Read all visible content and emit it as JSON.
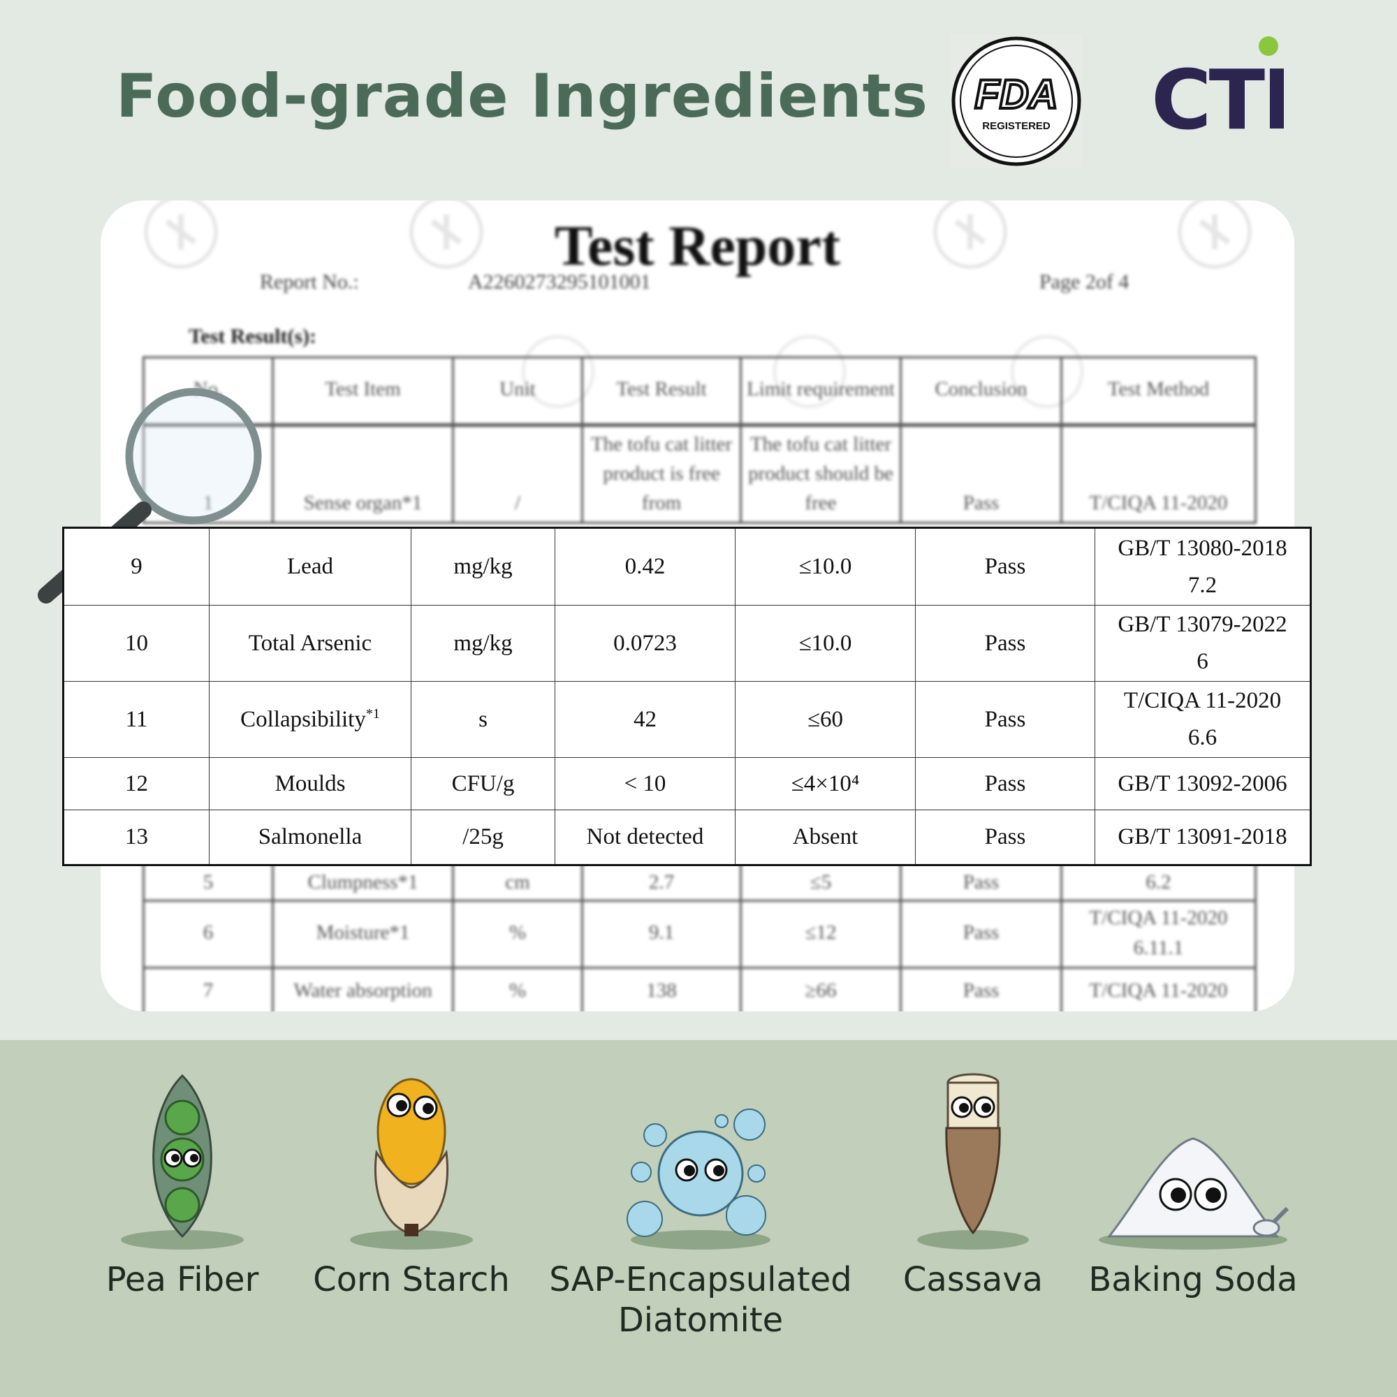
{
  "header": {
    "title": "Food-grade Ingredients",
    "fda_logo": {
      "text": "FDA",
      "subtext": "REGISTERED"
    },
    "cti_logo": {
      "text": "CTI",
      "dot_color": "#8cc63f",
      "color": "#2b2550"
    }
  },
  "document": {
    "title": "Test Report",
    "report_no_label": "Report No.:",
    "report_no": "A2260273295101001",
    "page": "Page 2of 4",
    "section": "Test Result(s):",
    "watermark": "CTI",
    "columns": [
      "No.",
      "Test Item",
      "Unit",
      "Test Result",
      "Limit requirement",
      "Conclusion",
      "Test Method"
    ],
    "rows_top": [
      [
        "1",
        "Sense organ*1",
        "/",
        "The tofu cat litter product is free from",
        "The tofu cat litter product should be free",
        "Pass",
        "T/CIQA 11-2020"
      ]
    ],
    "rows_bottom": [
      [
        "5",
        "Clumpness*1",
        "cm",
        "2.7",
        "≤5",
        "Pass",
        "6.2"
      ],
      [
        "6",
        "Moisture*1",
        "%",
        "9.1",
        "≤12",
        "Pass",
        "T/CIQA 11-2020 6.11.1"
      ],
      [
        "7",
        "Water absorption",
        "%",
        "138",
        "≥66",
        "Pass",
        "T/CIQA 11-2020"
      ]
    ]
  },
  "results": [
    {
      "no": "9",
      "item": "Lead",
      "sup": "",
      "unit": "mg/kg",
      "result": "0.42",
      "limit": "≤10.0",
      "conclusion": "Pass",
      "method": "GB/T 13080-2018",
      "method2": "7.2"
    },
    {
      "no": "10",
      "item": "Total Arsenic",
      "sup": "",
      "unit": "mg/kg",
      "result": "0.0723",
      "limit": "≤10.0",
      "conclusion": "Pass",
      "method": "GB/T 13079-2022",
      "method2": "6"
    },
    {
      "no": "11",
      "item": "Collapsibility",
      "sup": "*1",
      "unit": "s",
      "result": "42",
      "limit": "≤60",
      "conclusion": "Pass",
      "method": "T/CIQA 11-2020",
      "method2": "6.6"
    },
    {
      "no": "12",
      "item": "Moulds",
      "sup": "",
      "unit": "CFU/g",
      "result": "< 10",
      "limit": "≤4×10⁴",
      "conclusion": "Pass",
      "method": "GB/T 13092-2006",
      "method2": ""
    },
    {
      "no": "13",
      "item": "Salmonella",
      "sup": "",
      "unit": "/25g",
      "result": "Not detected",
      "limit": "Absent",
      "conclusion": "Pass",
      "method": "GB/T 13091-2018",
      "method2": ""
    }
  ],
  "ingredients": [
    {
      "label": "Pea Fiber",
      "icon": "pea-pod-icon"
    },
    {
      "label": "Corn Starch",
      "icon": "corn-icon"
    },
    {
      "label": "SAP-Encapsulated",
      "label2": "Diatomite",
      "icon": "bubble-icon"
    },
    {
      "label": "Cassava",
      "icon": "cassava-icon"
    },
    {
      "label": "Baking Soda",
      "icon": "powder-pile-icon"
    }
  ]
}
